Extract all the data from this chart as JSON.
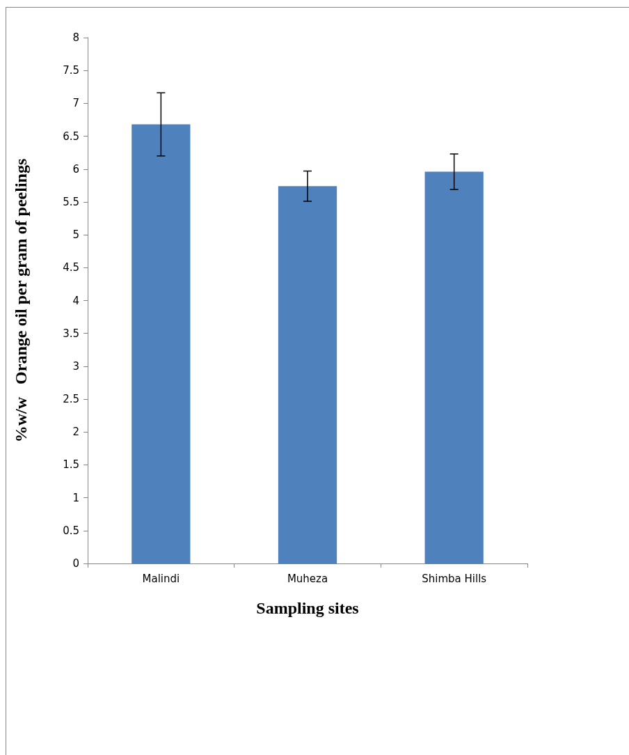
{
  "chart_data": {
    "type": "bar",
    "xlabel": "Sampling sites",
    "ylabel": "%w/w   Orange oil per gram of peelings",
    "categories": [
      "Malindi",
      "Muheza",
      "Shimba Hills"
    ],
    "values": [
      6.68,
      5.74,
      5.96
    ],
    "errors": [
      0.48,
      0.23,
      0.27
    ],
    "color": "#4f81bd",
    "ylim": [
      0,
      8
    ],
    "yticks": [
      0,
      0.5,
      1,
      1.5,
      2,
      2.5,
      3,
      3.5,
      4,
      4.5,
      5,
      5.5,
      6,
      6.5,
      7,
      7.5,
      8
    ],
    "grid": false
  }
}
